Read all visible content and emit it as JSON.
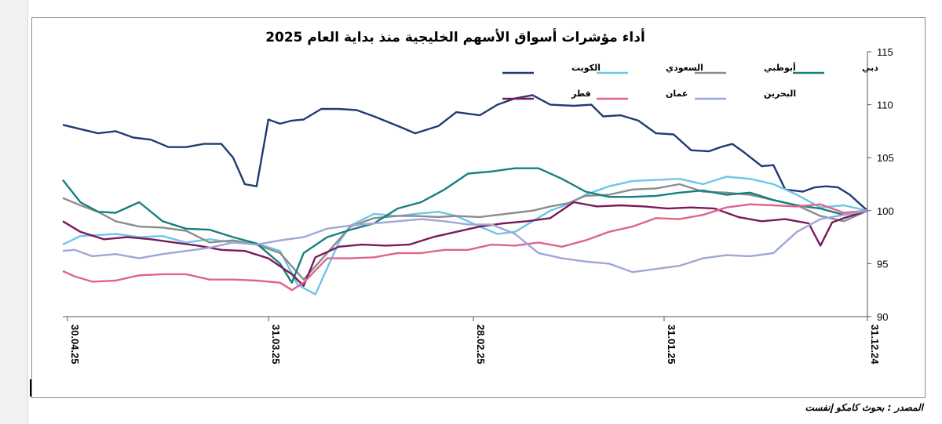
{
  "chart_data": {
    "type": "line",
    "title": "أداء مؤشرات أسواق الأسهم الخليجية منذ بداية العام 2025",
    "x_tick_labels": [
      "30.04.25",
      "31.03.25",
      "28.02.25",
      "31.01.25",
      "31.12.24"
    ],
    "x_direction": "right-to-left (31.12.24 at right, 30.04.25 at left)",
    "y_ticks": [
      90,
      95,
      100,
      105,
      110,
      115
    ],
    "ylim": [
      90,
      115
    ],
    "y_axis_position": "right",
    "grid": false,
    "legend_placement": "top, inside plot, 2 rows x 4",
    "series": [
      {
        "name": "الكويت",
        "color": "#1f3b73",
        "points": [
          [
            0,
            100
          ],
          [
            0.03,
            101.5
          ],
          [
            0.05,
            102.2
          ],
          [
            0.07,
            102.3
          ],
          [
            0.09,
            102.2
          ],
          [
            0.11,
            101.8
          ],
          [
            0.14,
            102.0
          ],
          [
            0.16,
            104.3
          ],
          [
            0.18,
            104.2
          ],
          [
            0.21,
            105.5
          ],
          [
            0.23,
            106.3
          ],
          [
            0.25,
            106.0
          ],
          [
            0.27,
            105.6
          ],
          [
            0.3,
            105.7
          ],
          [
            0.33,
            107.2
          ],
          [
            0.36,
            107.3
          ],
          [
            0.39,
            108.5
          ],
          [
            0.42,
            109.0
          ],
          [
            0.45,
            108.9
          ],
          [
            0.47,
            110.0
          ],
          [
            0.5,
            109.9
          ],
          [
            0.54,
            110.0
          ],
          [
            0.57,
            110.9
          ],
          [
            0.6,
            110.6
          ],
          [
            0.63,
            110.0
          ],
          [
            0.66,
            109.0
          ],
          [
            0.7,
            109.3
          ],
          [
            0.73,
            108.0
          ],
          [
            0.77,
            107.3
          ],
          [
            0.8,
            108.0
          ],
          [
            0.84,
            108.9
          ],
          [
            0.87,
            109.5
          ],
          [
            0.9,
            109.6
          ],
          [
            0.93,
            109.6
          ],
          [
            0.96,
            108.6
          ],
          [
            0.98,
            108.5
          ],
          [
            1.0,
            108.2
          ],
          [
            1.02,
            108.6
          ],
          [
            1.04,
            102.3
          ],
          [
            1.06,
            102.5
          ],
          [
            1.08,
            105.0
          ],
          [
            1.1,
            106.3
          ],
          [
            1.13,
            106.3
          ],
          [
            1.16,
            106.0
          ],
          [
            1.19,
            106.0
          ],
          [
            1.22,
            106.7
          ],
          [
            1.25,
            106.9
          ],
          [
            1.28,
            107.5
          ],
          [
            1.31,
            107.3
          ],
          [
            1.34,
            107.7
          ],
          [
            1.37,
            108.1
          ]
        ]
      },
      {
        "name": "السعودي",
        "color": "#6ec6e8",
        "points": [
          [
            0,
            100
          ],
          [
            0.04,
            100.5
          ],
          [
            0.08,
            100.3
          ],
          [
            0.12,
            101.5
          ],
          [
            0.16,
            102.5
          ],
          [
            0.2,
            103.0
          ],
          [
            0.24,
            103.2
          ],
          [
            0.28,
            102.5
          ],
          [
            0.32,
            103.0
          ],
          [
            0.36,
            102.9
          ],
          [
            0.4,
            102.8
          ],
          [
            0.44,
            102.3
          ],
          [
            0.48,
            101.5
          ],
          [
            0.51,
            100.6
          ],
          [
            0.54,
            100.0
          ],
          [
            0.57,
            99.0
          ],
          [
            0.6,
            98.0
          ],
          [
            0.63,
            97.8
          ],
          [
            0.66,
            98.5
          ],
          [
            0.7,
            99.5
          ],
          [
            0.73,
            99.9
          ],
          [
            0.77,
            99.7
          ],
          [
            0.8,
            99.5
          ],
          [
            0.84,
            99.7
          ],
          [
            0.88,
            98.6
          ],
          [
            0.9,
            97.0
          ],
          [
            0.94,
            92.1
          ],
          [
            0.97,
            93.0
          ],
          [
            1.0,
            96.2
          ],
          [
            1.04,
            96.9
          ],
          [
            1.08,
            97.0
          ],
          [
            1.12,
            97.3
          ],
          [
            1.16,
            97.0
          ],
          [
            1.2,
            97.6
          ],
          [
            1.24,
            97.5
          ],
          [
            1.28,
            97.8
          ],
          [
            1.31,
            97.7
          ],
          [
            1.34,
            97.6
          ],
          [
            1.37,
            96.8
          ]
        ]
      },
      {
        "name": "أبوظبي",
        "color": "#8c8c8c",
        "points": [
          [
            0,
            100
          ],
          [
            0.04,
            99.0
          ],
          [
            0.08,
            99.5
          ],
          [
            0.12,
            100.5
          ],
          [
            0.16,
            101.0
          ],
          [
            0.2,
            101.5
          ],
          [
            0.24,
            101.7
          ],
          [
            0.28,
            101.8
          ],
          [
            0.32,
            102.5
          ],
          [
            0.36,
            102.1
          ],
          [
            0.4,
            102.0
          ],
          [
            0.44,
            101.5
          ],
          [
            0.48,
            101.4
          ],
          [
            0.51,
            100.7
          ],
          [
            0.54,
            100.4
          ],
          [
            0.57,
            100.0
          ],
          [
            0.6,
            99.8
          ],
          [
            0.63,
            99.6
          ],
          [
            0.66,
            99.4
          ],
          [
            0.7,
            99.5
          ],
          [
            0.73,
            99.4
          ],
          [
            0.77,
            99.5
          ],
          [
            0.8,
            99.5
          ],
          [
            0.84,
            99.3
          ],
          [
            0.88,
            98.5
          ],
          [
            0.92,
            96.0
          ],
          [
            0.96,
            93.5
          ],
          [
            1.0,
            96.0
          ],
          [
            1.04,
            96.8
          ],
          [
            1.08,
            97.2
          ],
          [
            1.12,
            97.0
          ],
          [
            1.16,
            98.1
          ],
          [
            1.2,
            98.4
          ],
          [
            1.24,
            98.5
          ],
          [
            1.28,
            99.0
          ],
          [
            1.31,
            99.9
          ],
          [
            1.34,
            100.5
          ],
          [
            1.37,
            101.2
          ]
        ]
      },
      {
        "name": "دبي",
        "color": "#14807f",
        "points": [
          [
            0,
            100
          ],
          [
            0.04,
            99.6
          ],
          [
            0.08,
            100.2
          ],
          [
            0.12,
            100.5
          ],
          [
            0.16,
            101.0
          ],
          [
            0.2,
            101.7
          ],
          [
            0.24,
            101.5
          ],
          [
            0.28,
            101.9
          ],
          [
            0.32,
            101.7
          ],
          [
            0.36,
            101.4
          ],
          [
            0.4,
            101.3
          ],
          [
            0.44,
            101.3
          ],
          [
            0.48,
            101.8
          ],
          [
            0.52,
            103.0
          ],
          [
            0.56,
            104.0
          ],
          [
            0.6,
            104.0
          ],
          [
            0.64,
            103.7
          ],
          [
            0.68,
            103.5
          ],
          [
            0.72,
            102.0
          ],
          [
            0.76,
            100.8
          ],
          [
            0.8,
            100.2
          ],
          [
            0.84,
            98.8
          ],
          [
            0.88,
            98.2
          ],
          [
            0.92,
            97.5
          ],
          [
            0.96,
            96.0
          ],
          [
            0.98,
            93.2
          ],
          [
            1.0,
            95.0
          ],
          [
            1.04,
            96.9
          ],
          [
            1.08,
            97.5
          ],
          [
            1.12,
            98.2
          ],
          [
            1.16,
            98.3
          ],
          [
            1.2,
            99.0
          ],
          [
            1.24,
            100.8
          ],
          [
            1.28,
            99.8
          ],
          [
            1.31,
            99.9
          ],
          [
            1.34,
            100.8
          ],
          [
            1.37,
            102.9
          ]
        ]
      },
      {
        "name": "قطر",
        "color": "#7a1a5a",
        "points": [
          [
            0,
            100
          ],
          [
            0.04,
            99.3
          ],
          [
            0.06,
            98.9
          ],
          [
            0.08,
            96.7
          ],
          [
            0.1,
            98.8
          ],
          [
            0.14,
            99.2
          ],
          [
            0.18,
            99.0
          ],
          [
            0.22,
            99.4
          ],
          [
            0.26,
            100.2
          ],
          [
            0.3,
            100.3
          ],
          [
            0.34,
            100.2
          ],
          [
            0.38,
            100.4
          ],
          [
            0.42,
            100.5
          ],
          [
            0.46,
            100.4
          ],
          [
            0.5,
            100.8
          ],
          [
            0.54,
            99.3
          ],
          [
            0.58,
            99.0
          ],
          [
            0.62,
            98.8
          ],
          [
            0.66,
            98.5
          ],
          [
            0.7,
            98.0
          ],
          [
            0.74,
            97.5
          ],
          [
            0.78,
            96.8
          ],
          [
            0.82,
            96.7
          ],
          [
            0.86,
            96.8
          ],
          [
            0.9,
            96.6
          ],
          [
            0.94,
            95.6
          ],
          [
            0.96,
            92.9
          ],
          [
            0.98,
            94.0
          ],
          [
            1.02,
            95.5
          ],
          [
            1.06,
            96.2
          ],
          [
            1.1,
            96.3
          ],
          [
            1.14,
            96.7
          ],
          [
            1.18,
            97.0
          ],
          [
            1.22,
            97.3
          ],
          [
            1.26,
            97.5
          ],
          [
            1.3,
            97.3
          ],
          [
            1.34,
            98.0
          ],
          [
            1.37,
            99.0
          ]
        ]
      },
      {
        "name": "عمان",
        "color": "#e0648a",
        "points": [
          [
            0,
            100
          ],
          [
            0.04,
            99.8
          ],
          [
            0.08,
            100.6
          ],
          [
            0.12,
            100.4
          ],
          [
            0.16,
            100.5
          ],
          [
            0.2,
            100.6
          ],
          [
            0.24,
            100.3
          ],
          [
            0.28,
            99.6
          ],
          [
            0.32,
            99.2
          ],
          [
            0.36,
            99.3
          ],
          [
            0.4,
            98.5
          ],
          [
            0.44,
            98.0
          ],
          [
            0.48,
            97.2
          ],
          [
            0.52,
            96.6
          ],
          [
            0.56,
            97.0
          ],
          [
            0.6,
            96.7
          ],
          [
            0.64,
            96.8
          ],
          [
            0.68,
            96.3
          ],
          [
            0.72,
            96.3
          ],
          [
            0.76,
            96.0
          ],
          [
            0.8,
            96.0
          ],
          [
            0.84,
            95.6
          ],
          [
            0.88,
            95.5
          ],
          [
            0.92,
            95.5
          ],
          [
            0.96,
            93.2
          ],
          [
            0.98,
            92.5
          ],
          [
            1.0,
            93.2
          ],
          [
            1.04,
            93.4
          ],
          [
            1.08,
            93.5
          ],
          [
            1.12,
            93.5
          ],
          [
            1.16,
            94.0
          ],
          [
            1.2,
            94.0
          ],
          [
            1.24,
            93.9
          ],
          [
            1.28,
            93.4
          ],
          [
            1.32,
            93.3
          ],
          [
            1.35,
            93.8
          ],
          [
            1.37,
            94.3
          ]
        ]
      },
      {
        "name": "البحرين",
        "color": "#9ea7d8",
        "points": [
          [
            0,
            100
          ],
          [
            0.04,
            99.6
          ],
          [
            0.08,
            99.2
          ],
          [
            0.12,
            98.0
          ],
          [
            0.16,
            96.0
          ],
          [
            0.2,
            95.7
          ],
          [
            0.24,
            95.8
          ],
          [
            0.28,
            95.5
          ],
          [
            0.32,
            94.8
          ],
          [
            0.36,
            94.5
          ],
          [
            0.4,
            94.2
          ],
          [
            0.44,
            95.0
          ],
          [
            0.48,
            95.2
          ],
          [
            0.52,
            95.5
          ],
          [
            0.56,
            96.0
          ],
          [
            0.6,
            97.8
          ],
          [
            0.64,
            98.7
          ],
          [
            0.68,
            98.7
          ],
          [
            0.72,
            99.0
          ],
          [
            0.76,
            99.2
          ],
          [
            0.8,
            99.0
          ],
          [
            0.84,
            98.8
          ],
          [
            0.88,
            98.6
          ],
          [
            0.92,
            98.3
          ],
          [
            0.96,
            97.5
          ],
          [
            1.0,
            97.2
          ],
          [
            1.04,
            96.8
          ],
          [
            1.08,
            97.0
          ],
          [
            1.12,
            96.5
          ],
          [
            1.16,
            96.2
          ],
          [
            1.2,
            95.9
          ],
          [
            1.24,
            95.5
          ],
          [
            1.28,
            95.9
          ],
          [
            1.32,
            95.7
          ],
          [
            1.35,
            96.3
          ],
          [
            1.37,
            96.2
          ]
        ]
      }
    ]
  },
  "source": "المصدر : بحوث كامكو إنفست"
}
